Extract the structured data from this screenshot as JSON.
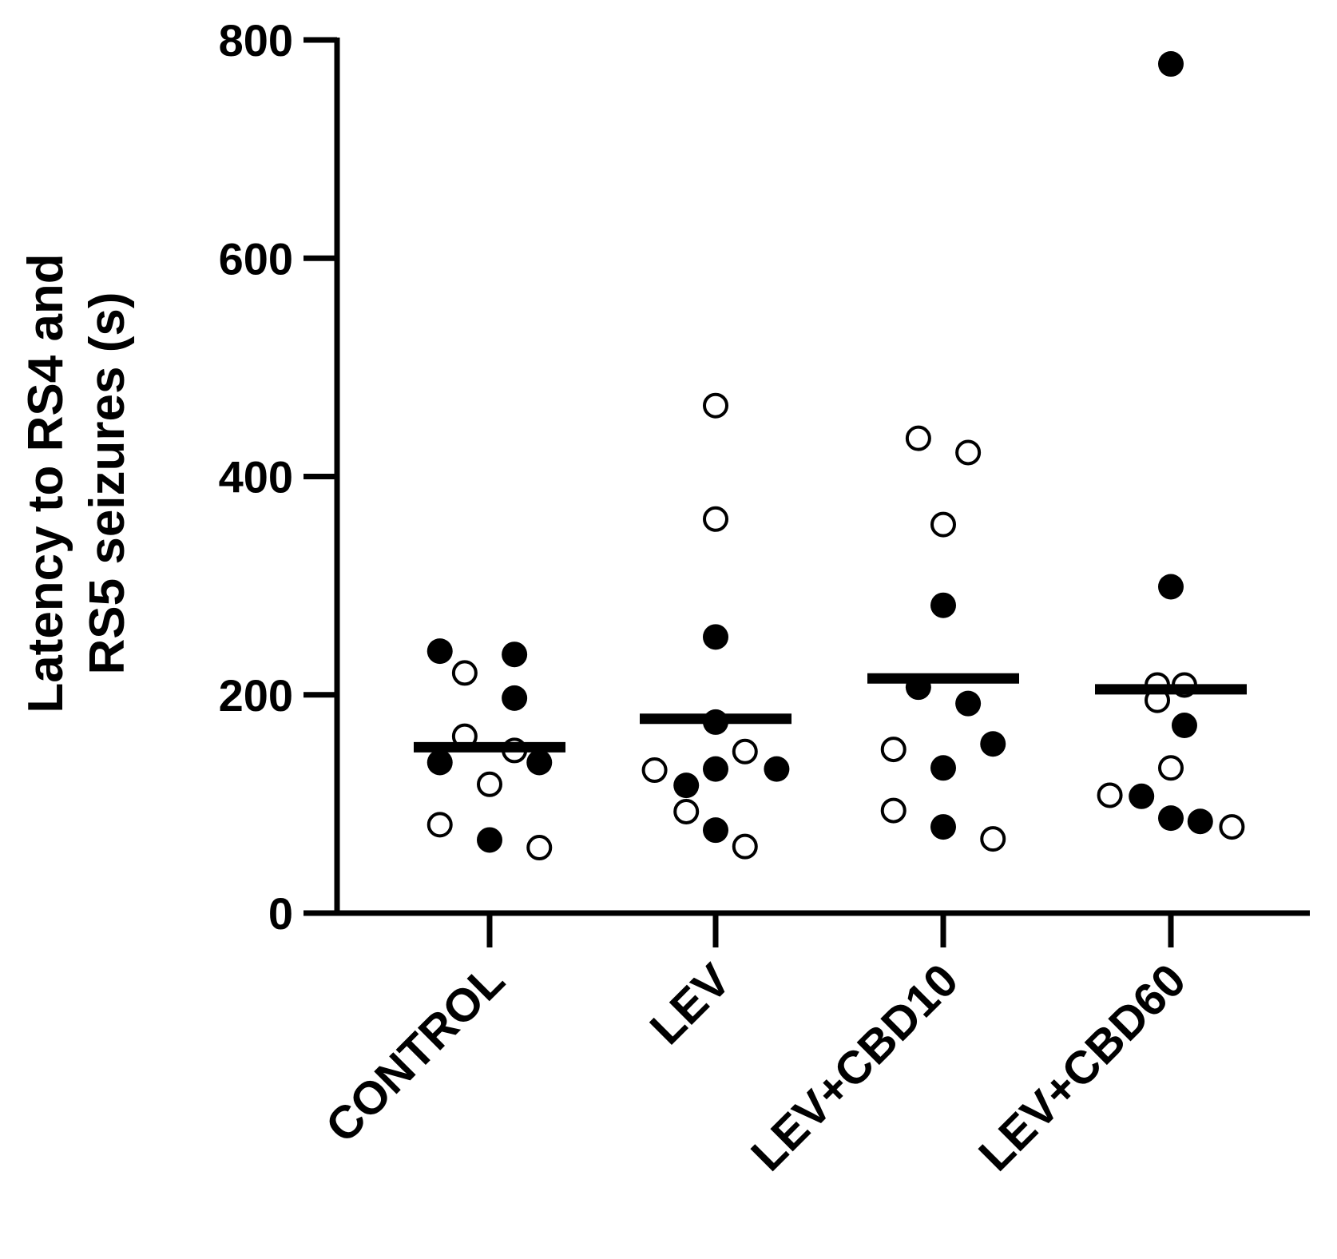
{
  "chart_data": {
    "type": "scatter",
    "title": "",
    "xlabel": "",
    "ylabel": [
      "Latency to RS4 and",
      "RS5 seizures (s)"
    ],
    "ylim": [
      0,
      800
    ],
    "yticks": [
      0,
      200,
      400,
      600,
      800
    ],
    "categories": [
      "CONTROL",
      "LEV",
      "LEV+CBD10",
      "LEV+CBD60"
    ],
    "medians": [
      152,
      178,
      215,
      205
    ],
    "points": [
      [
        {
          "o": -0.22,
          "y": 240,
          "filled": true
        },
        {
          "o": 0.11,
          "y": 237,
          "filled": true
        },
        {
          "o": -0.11,
          "y": 220,
          "filled": false
        },
        {
          "o": 0.11,
          "y": 197,
          "filled": true
        },
        {
          "o": -0.11,
          "y": 162,
          "filled": false
        },
        {
          "o": 0.11,
          "y": 149,
          "filled": false
        },
        {
          "o": -0.22,
          "y": 138,
          "filled": true
        },
        {
          "o": 0.22,
          "y": 138,
          "filled": true
        },
        {
          "o": 0.0,
          "y": 118,
          "filled": false
        },
        {
          "o": -0.22,
          "y": 81,
          "filled": false
        },
        {
          "o": 0.0,
          "y": 67,
          "filled": true
        },
        {
          "o": 0.22,
          "y": 60,
          "filled": false
        }
      ],
      [
        {
          "o": 0.0,
          "y": 465,
          "filled": false
        },
        {
          "o": 0.0,
          "y": 361,
          "filled": false
        },
        {
          "o": 0.0,
          "y": 253,
          "filled": true
        },
        {
          "o": 0.0,
          "y": 175,
          "filled": true
        },
        {
          "o": 0.13,
          "y": 148,
          "filled": false
        },
        {
          "o": -0.27,
          "y": 131,
          "filled": false
        },
        {
          "o": 0.0,
          "y": 132,
          "filled": true
        },
        {
          "o": 0.27,
          "y": 132,
          "filled": true
        },
        {
          "o": -0.13,
          "y": 117,
          "filled": true
        },
        {
          "o": -0.13,
          "y": 93,
          "filled": false
        },
        {
          "o": 0.0,
          "y": 76,
          "filled": true
        },
        {
          "o": 0.13,
          "y": 61,
          "filled": false
        }
      ],
      [
        {
          "o": -0.11,
          "y": 435,
          "filled": false
        },
        {
          "o": 0.11,
          "y": 422,
          "filled": false
        },
        {
          "o": 0.0,
          "y": 356,
          "filled": false
        },
        {
          "o": 0.0,
          "y": 282,
          "filled": true
        },
        {
          "o": -0.11,
          "y": 207,
          "filled": true
        },
        {
          "o": 0.11,
          "y": 192,
          "filled": true
        },
        {
          "o": 0.22,
          "y": 155,
          "filled": true
        },
        {
          "o": -0.22,
          "y": 150,
          "filled": false
        },
        {
          "o": 0.0,
          "y": 133,
          "filled": true
        },
        {
          "o": -0.22,
          "y": 94,
          "filled": false
        },
        {
          "o": 0.0,
          "y": 79,
          "filled": true
        },
        {
          "o": 0.22,
          "y": 68,
          "filled": false
        }
      ],
      [
        {
          "o": 0.0,
          "y": 778,
          "filled": true
        },
        {
          "o": 0.0,
          "y": 299,
          "filled": true
        },
        {
          "o": -0.06,
          "y": 209,
          "filled": false
        },
        {
          "o": 0.06,
          "y": 209,
          "filled": false
        },
        {
          "o": -0.06,
          "y": 195,
          "filled": false
        },
        {
          "o": 0.06,
          "y": 172,
          "filled": true
        },
        {
          "o": 0.0,
          "y": 133,
          "filled": false
        },
        {
          "o": -0.27,
          "y": 108,
          "filled": false
        },
        {
          "o": -0.13,
          "y": 107,
          "filled": true
        },
        {
          "o": 0.0,
          "y": 87,
          "filled": true
        },
        {
          "o": 0.13,
          "y": 84,
          "filled": true
        },
        {
          "o": 0.27,
          "y": 79,
          "filled": false
        }
      ]
    ]
  }
}
